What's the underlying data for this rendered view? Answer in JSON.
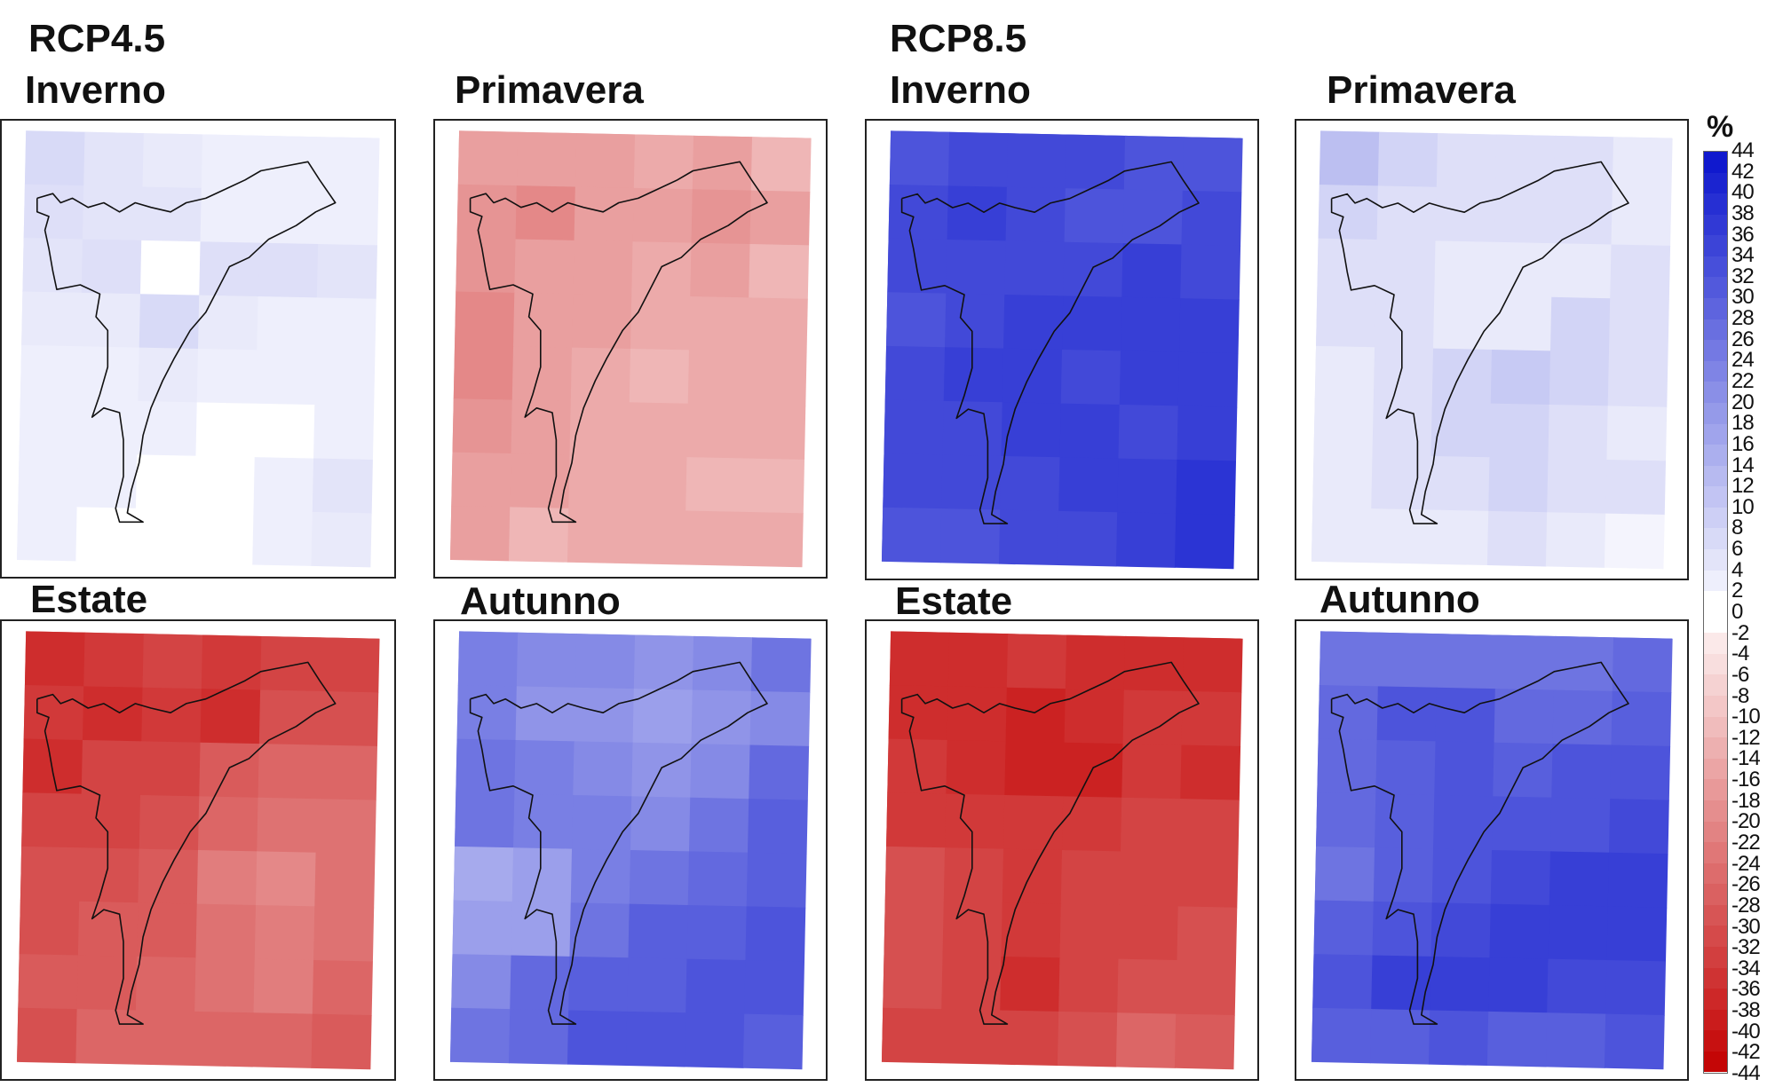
{
  "scenarios": [
    {
      "name": "RCP4.5",
      "panels": [
        {
          "season": "Inverno",
          "base": 4,
          "grid": [
            [
              7,
              5,
              4,
              3,
              3,
              3
            ],
            [
              6,
              5,
              5,
              3,
              3,
              3
            ],
            [
              5,
              6,
              0,
              6,
              6,
              5
            ],
            [
              4,
              4,
              7,
              4,
              3,
              3
            ],
            [
              3,
              3,
              4,
              3,
              3,
              3
            ],
            [
              3,
              3,
              3,
              0,
              0,
              3
            ],
            [
              3,
              3,
              0,
              0,
              3,
              5
            ],
            [
              3,
              0,
              0,
              0,
              3,
              4
            ]
          ]
        },
        {
          "season": "Primavera",
          "base": -16,
          "grid": [
            [
              -16,
              -16,
              -16,
              -14,
              -16,
              -12
            ],
            [
              -18,
              -20,
              -16,
              -16,
              -18,
              -16
            ],
            [
              -18,
              -16,
              -16,
              -14,
              -16,
              -12
            ],
            [
              -20,
              -16,
              -16,
              -14,
              -14,
              -14
            ],
            [
              -20,
              -16,
              -14,
              -12,
              -14,
              -14
            ],
            [
              -18,
              -16,
              -14,
              -14,
              -14,
              -14
            ],
            [
              -16,
              -16,
              -14,
              -14,
              -12,
              -12
            ],
            [
              -16,
              -12,
              -14,
              -14,
              -14,
              -14
            ]
          ]
        },
        {
          "season": "Estate",
          "base": -28,
          "grid": [
            [
              -36,
              -34,
              -32,
              -34,
              -32,
              -32
            ],
            [
              -34,
              -36,
              -34,
              -36,
              -30,
              -30
            ],
            [
              -36,
              -32,
              -32,
              -28,
              -26,
              -26
            ],
            [
              -32,
              -32,
              -30,
              -26,
              -24,
              -24
            ],
            [
              -30,
              -30,
              -28,
              -22,
              -20,
              -24
            ],
            [
              -30,
              -28,
              -28,
              -24,
              -22,
              -24
            ],
            [
              -28,
              -28,
              -26,
              -24,
              -22,
              -26
            ],
            [
              -30,
              -26,
              -26,
              -26,
              -26,
              -28
            ]
          ]
        },
        {
          "season": "Autunno",
          "base": 22,
          "grid": [
            [
              24,
              22,
              22,
              20,
              22,
              26
            ],
            [
              24,
              20,
              20,
              18,
              20,
              22
            ],
            [
              26,
              24,
              22,
              20,
              22,
              28
            ],
            [
              26,
              24,
              24,
              22,
              26,
              30
            ],
            [
              16,
              18,
              24,
              26,
              28,
              30
            ],
            [
              18,
              18,
              26,
              30,
              30,
              32
            ],
            [
              22,
              28,
              30,
              30,
              32,
              32
            ],
            [
              26,
              28,
              32,
              32,
              32,
              30
            ]
          ]
        }
      ]
    },
    {
      "name": "RCP8.5",
      "panels": [
        {
          "season": "Inverno",
          "base": 34,
          "grid": [
            [
              32,
              34,
              34,
              34,
              32,
              32
            ],
            [
              34,
              36,
              34,
              32,
              32,
              34
            ],
            [
              34,
              34,
              34,
              34,
              36,
              34
            ],
            [
              32,
              34,
              36,
              36,
              36,
              36
            ],
            [
              34,
              36,
              36,
              34,
              36,
              36
            ],
            [
              34,
              34,
              36,
              36,
              34,
              36
            ],
            [
              34,
              34,
              34,
              36,
              36,
              38
            ],
            [
              32,
              32,
              34,
              34,
              36,
              38
            ]
          ]
        },
        {
          "season": "Primavera",
          "base": 6,
          "grid": [
            [
              12,
              8,
              6,
              6,
              6,
              4
            ],
            [
              8,
              6,
              6,
              6,
              6,
              4
            ],
            [
              6,
              6,
              4,
              4,
              4,
              6
            ],
            [
              6,
              6,
              4,
              4,
              8,
              6
            ],
            [
              4,
              6,
              8,
              10,
              8,
              6
            ],
            [
              4,
              6,
              8,
              8,
              6,
              4
            ],
            [
              4,
              6,
              6,
              8,
              6,
              6
            ],
            [
              4,
              4,
              4,
              6,
              4,
              2
            ]
          ]
        },
        {
          "season": "Estate",
          "base": -32,
          "grid": [
            [
              -36,
              -36,
              -34,
              -36,
              -36,
              -36
            ],
            [
              -36,
              -36,
              -38,
              -36,
              -34,
              -34
            ],
            [
              -34,
              -36,
              -38,
              -38,
              -34,
              -36
            ],
            [
              -34,
              -34,
              -34,
              -34,
              -32,
              -32
            ],
            [
              -30,
              -32,
              -34,
              -32,
              -32,
              -32
            ],
            [
              -30,
              -32,
              -34,
              -32,
              -32,
              -30
            ],
            [
              -30,
              -32,
              -36,
              -32,
              -30,
              -30
            ],
            [
              -32,
              -32,
              -32,
              -30,
              -26,
              -28
            ]
          ]
        },
        {
          "season": "Autunno",
          "base": 30,
          "grid": [
            [
              26,
              26,
              26,
              26,
              26,
              28
            ],
            [
              28,
              32,
              32,
              28,
              28,
              30
            ],
            [
              28,
              30,
              32,
              30,
              32,
              32
            ],
            [
              28,
              30,
              32,
              32,
              32,
              34
            ],
            [
              26,
              30,
              32,
              34,
              36,
              36
            ],
            [
              30,
              32,
              34,
              36,
              36,
              36
            ],
            [
              32,
              36,
              36,
              36,
              34,
              34
            ],
            [
              30,
              30,
              32,
              30,
              30,
              32
            ]
          ]
        }
      ]
    }
  ],
  "colorbar": {
    "unit": "%",
    "min": -44,
    "max": 44,
    "step": 2,
    "tick_labels": [
      "44",
      "42",
      "40",
      "38",
      "36",
      "34",
      "32",
      "30",
      "28",
      "26",
      "24",
      "22",
      "20",
      "18",
      "16",
      "14",
      "12",
      "10",
      "8",
      "6",
      "4",
      "2",
      "0",
      "-2",
      "-4",
      "-6",
      "-8",
      "-10",
      "-12",
      "-14",
      "-16",
      "-18",
      "-20",
      "-22",
      "-24",
      "-26",
      "-28",
      "-30",
      "-32",
      "-34",
      "-36",
      "-38",
      "-40",
      "-42",
      "-44"
    ]
  }
}
